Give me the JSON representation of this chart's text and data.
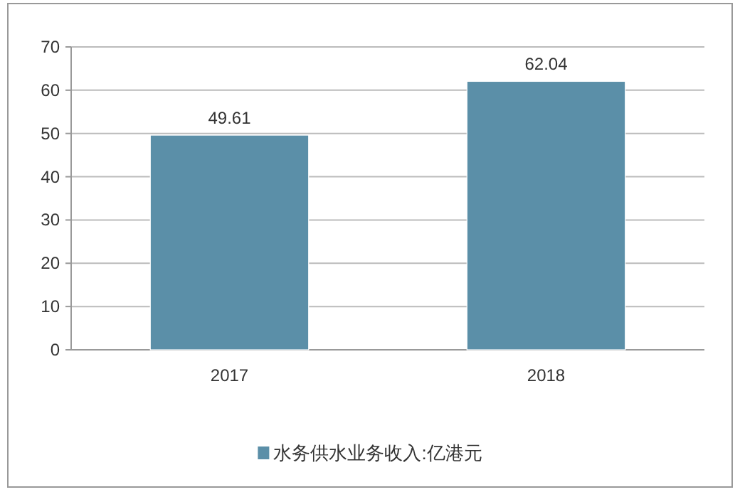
{
  "chart_data": {
    "type": "bar",
    "categories": [
      "2017",
      "2018"
    ],
    "series": [
      {
        "name": "水务供水业务收入:亿港元",
        "color": "#5b8fa8",
        "values": [
          49.61,
          62.04
        ]
      }
    ],
    "ylim": [
      0,
      70
    ],
    "yticks": [
      0,
      10,
      20,
      30,
      40,
      50,
      60,
      70
    ],
    "grid": "y",
    "legend": "bottom",
    "data_labels": true
  }
}
